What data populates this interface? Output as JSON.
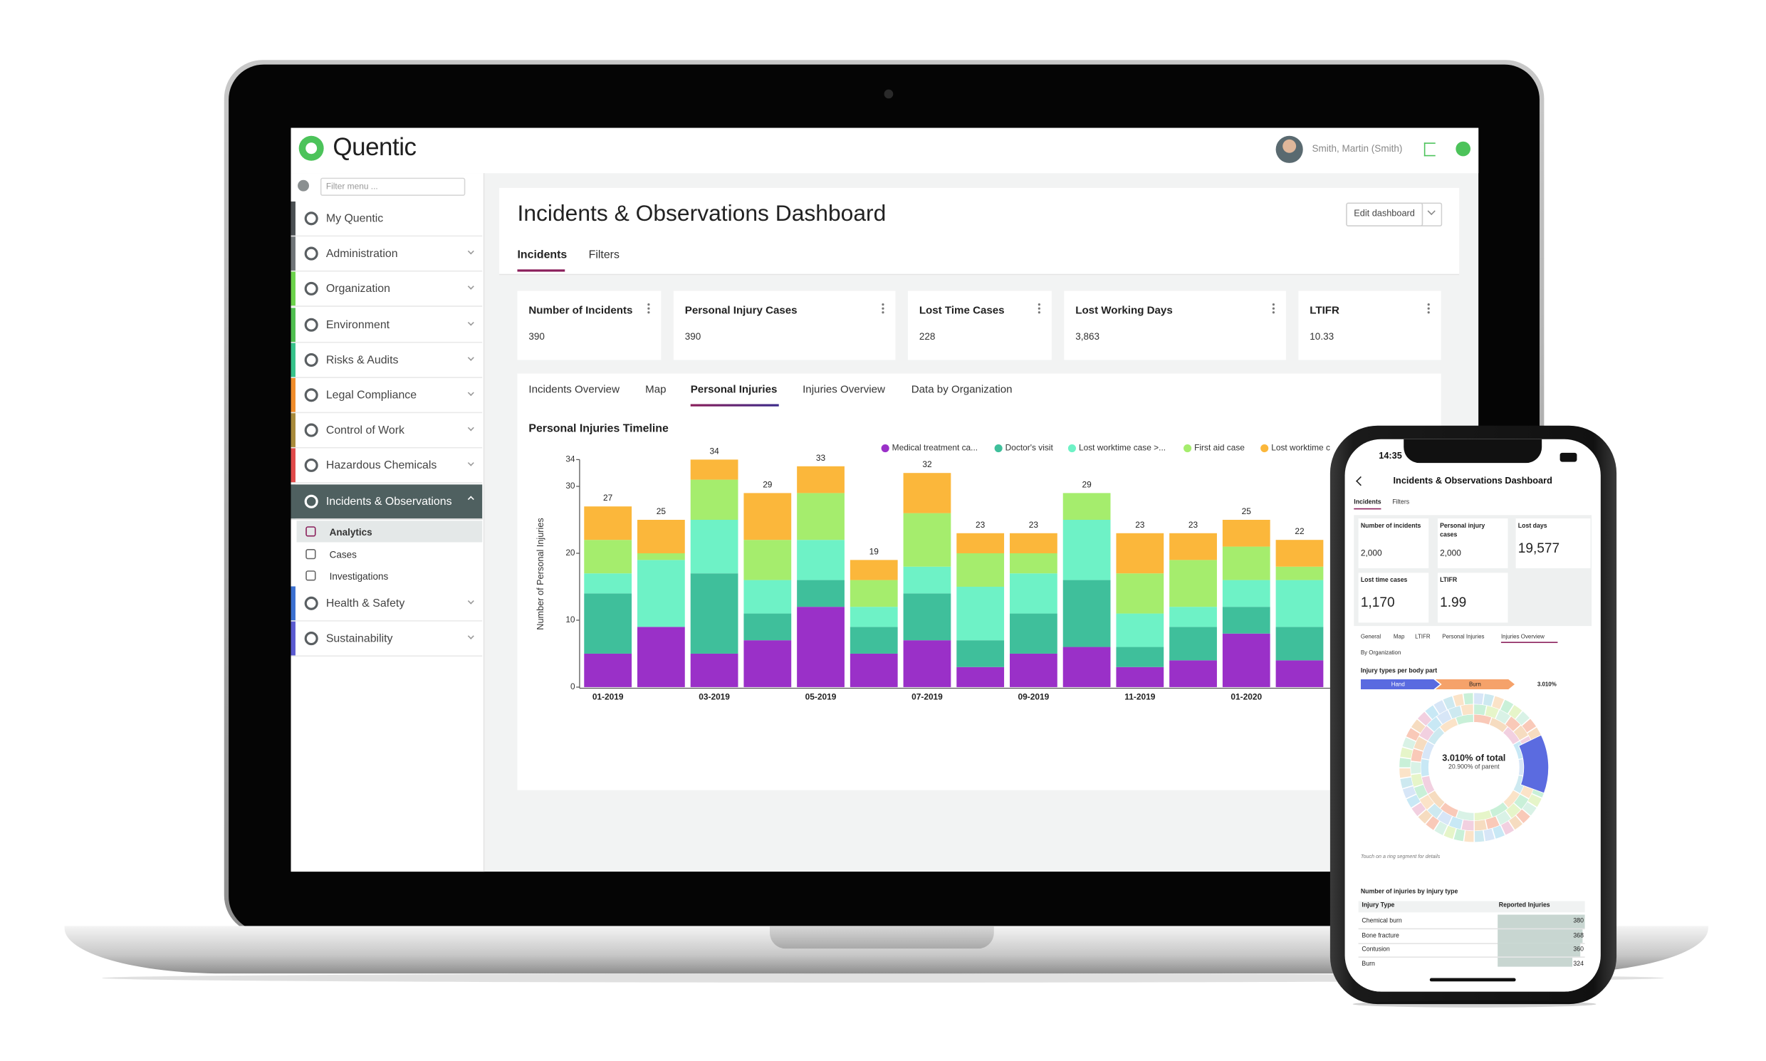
{
  "app": {
    "brand": "Quentic",
    "filter_placeholder": "Filter menu ...",
    "user": "Smith, Martin (Smith)"
  },
  "menu": [
    {
      "label": "My Quentic",
      "color": "#4a4f52"
    },
    {
      "label": "Administration",
      "color": "#6f7477"
    },
    {
      "label": "Organization",
      "color": "#6bd24a"
    },
    {
      "label": "Environment",
      "color": "#4fbf4f"
    },
    {
      "label": "Risks & Audits",
      "color": "#36c28a"
    },
    {
      "label": "Legal Compliance",
      "color": "#f08c2a"
    },
    {
      "label": "Control of Work",
      "color": "#a88a3a"
    },
    {
      "label": "Hazardous Chemicals",
      "color": "#e04a4a"
    },
    {
      "label": "Incidents & Observations",
      "color": "#4f6060"
    },
    {
      "label": "Health & Safety",
      "color": "#3a6fd0"
    },
    {
      "label": "Sustainability",
      "color": "#5a5ad0"
    }
  ],
  "submenu": [
    "Analytics",
    "Cases",
    "Investigations"
  ],
  "dashboard": {
    "title": "Incidents & Observations Dashboard",
    "edit_button": "Edit dashboard",
    "tabs": [
      "Incidents",
      "Filters"
    ]
  },
  "kpis": [
    {
      "label": "Number of Incidents",
      "value": 390
    },
    {
      "label": "Personal Injury Cases",
      "value": 390
    },
    {
      "label": "Lost Time Cases",
      "value": 228
    },
    {
      "label": "Lost Working Days",
      "value": "3,863"
    },
    {
      "label": "LTIFR",
      "value": 10.33
    }
  ],
  "chart_tabs": [
    "Incidents Overview",
    "Map",
    "Personal Injuries",
    "Injuries Overview",
    "Data by Organization"
  ],
  "chart_data": {
    "type": "stacked_bar",
    "title": "Personal Injuries Timeline",
    "y_label": "Number of Personal Injuries",
    "categories": [
      "01-2019",
      null,
      "03-2019",
      null,
      "05-2019",
      null,
      "07-2019",
      null,
      "09-2019",
      null,
      "11-2019",
      null,
      "01-2020",
      null
    ],
    "series": [
      {
        "name": "Medical treatment ca...",
        "color": "#9a30c8",
        "values": [
          5,
          9,
          5,
          7,
          12,
          5,
          7,
          3,
          5,
          6,
          3,
          4,
          8,
          4
        ]
      },
      {
        "name": "Doctor's visit",
        "color": "#3fbf9b",
        "values": [
          9,
          0,
          12,
          4,
          4,
          4,
          7,
          4,
          6,
          10,
          3,
          5,
          4,
          5
        ]
      },
      {
        "name": "Lost worktime case >...",
        "color": "#6ef2c6",
        "values": [
          3,
          10,
          8,
          5,
          6,
          3,
          4,
          8,
          6,
          9,
          5,
          3,
          4,
          7
        ]
      },
      {
        "name": "First aid case",
        "color": "#a5ed6d",
        "values": [
          5,
          1,
          6,
          6,
          7,
          4,
          8,
          5,
          3,
          4,
          6,
          7,
          5,
          2
        ]
      },
      {
        "name": "Lost worktime c",
        "color": "#fbb73b",
        "values": [
          5,
          5,
          3,
          7,
          4,
          3,
          6,
          3,
          3,
          0,
          6,
          4,
          4,
          4
        ]
      }
    ],
    "totals": [
      27,
      25,
      34,
      29,
      33,
      19,
      32,
      23,
      23,
      29,
      23,
      23,
      25,
      22
    ],
    "ylim": [
      0,
      34
    ],
    "yticks": [
      0,
      10,
      20,
      30,
      34
    ],
    "grid": false
  },
  "phone": {
    "time": "14:35",
    "title": "Incidents & Observations Dashboard",
    "tabs": [
      "Incidents",
      "Filters"
    ],
    "kpis": [
      {
        "label": "Number of incidents",
        "value": "2,000"
      },
      {
        "label": "Personal injury cases",
        "value": "2,000"
      },
      {
        "label": "Lost days",
        "value": "19,577"
      },
      {
        "label": "Lost time cases",
        "value": "1,170"
      },
      {
        "label": "LTIFR",
        "value": 1.99
      }
    ],
    "subtabs": [
      "General",
      "Map",
      "LTIFR",
      "Personal Injuries",
      "Injuries Overview"
    ],
    "by_org": "By Organization",
    "sunburst_title": "Injury types per body part",
    "breadcrumb": [
      "Hand",
      "Burn"
    ],
    "breadcrumb_value": "3.010%",
    "center_main": "3.010% of total",
    "center_sub": "20.900% of parent",
    "hint": "Touch on a ring segment for details",
    "table_title": "Number of injuries by injury type",
    "table_headers": [
      "Injury Type",
      "Reported Injuries"
    ],
    "table_rows": [
      [
        "Chemical burn",
        380
      ],
      [
        "Bone fracture",
        368
      ],
      [
        "Contusion",
        360
      ],
      [
        "Burn",
        324
      ]
    ]
  }
}
